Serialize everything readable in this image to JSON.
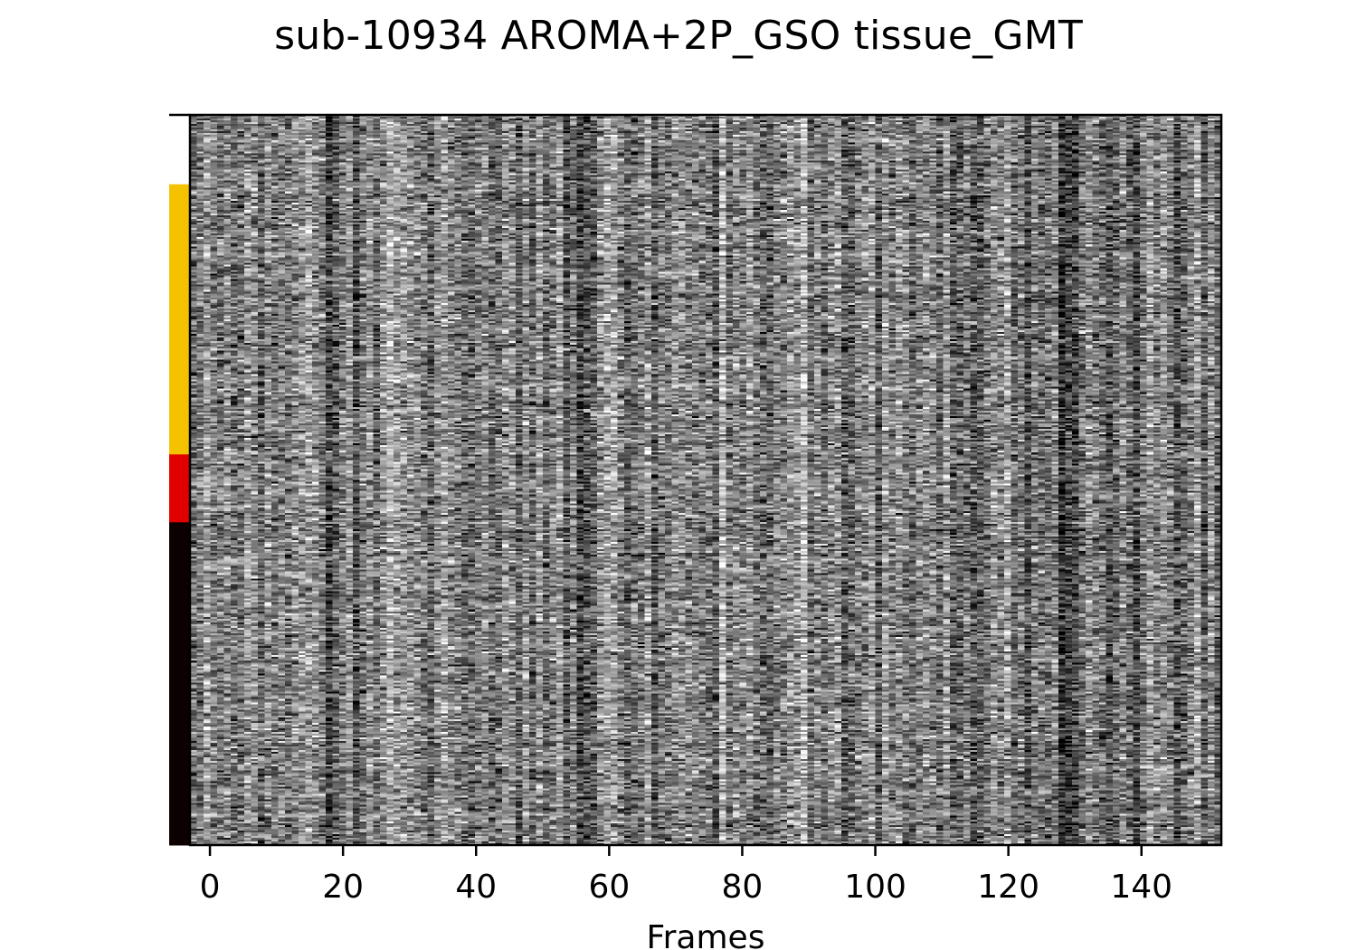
{
  "chart_data": {
    "type": "heatmap",
    "title": "sub-10934 AROMA+2P_GSO tissue_GMT",
    "xlabel": "Frames",
    "ylabel": "",
    "xlim": [
      -3,
      152
    ],
    "xticks": [
      0,
      20,
      40,
      60,
      80,
      100,
      120,
      140
    ],
    "xtick_labels": [
      "0",
      "20",
      "40",
      "60",
      "80",
      "100",
      "120",
      "140"
    ],
    "n_frames": 152,
    "colormap": "gray",
    "segments": [
      {
        "fraction": 0.095,
        "color": "#ffffff"
      },
      {
        "fraction": 0.37,
        "color": "#f5c200"
      },
      {
        "fraction": 0.093,
        "color": "#e00000"
      },
      {
        "fraction": 0.442,
        "color": "#0d0000"
      }
    ],
    "dark_frames": [
      20,
      21,
      22,
      23,
      24,
      25,
      26,
      27,
      28,
      57,
      59,
      60,
      64,
      68,
      115,
      116,
      117,
      118,
      119,
      120,
      121,
      122,
      123,
      128,
      129,
      130,
      135,
      138,
      139,
      145,
      146
    ],
    "bright_frames": [
      17,
      22,
      23,
      25,
      26,
      27,
      28,
      29,
      30,
      60,
      78,
      80,
      82,
      90,
      95,
      104,
      117,
      118,
      119,
      120,
      121,
      122,
      148
    ]
  }
}
